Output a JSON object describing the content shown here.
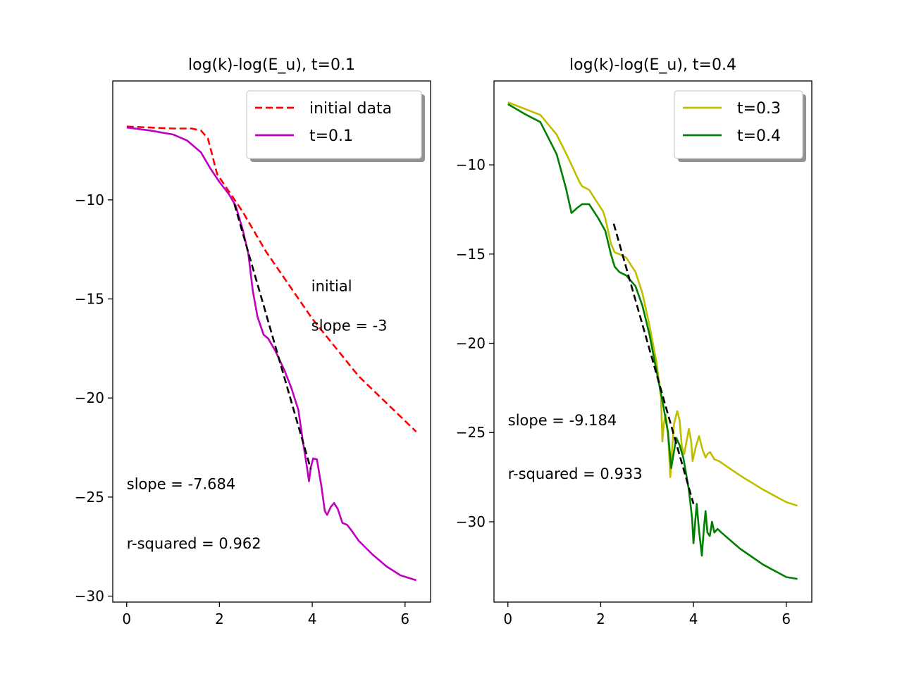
{
  "chart_data": [
    {
      "type": "line",
      "title": "log(k)-log(E_u), t=0.1",
      "xlim": [
        -0.3,
        6.55
      ],
      "ylim": [
        -30.3,
        -4.0
      ],
      "xticks": [
        0,
        2,
        4,
        6
      ],
      "xtick_labels": [
        "0",
        "2",
        "4",
        "6"
      ],
      "yticks": [
        -10,
        -15,
        -20,
        -25,
        -30
      ],
      "ytick_labels": [
        "−10",
        "−15",
        "−20",
        "−25",
        "−30"
      ],
      "legend_position": "top-right",
      "legend_entries": [
        "initial data",
        "t=0.1"
      ],
      "series": [
        {
          "name": "initial data",
          "color": "#ff0000",
          "dash": "dashed",
          "points": [
            [
              0,
              -6.3
            ],
            [
              0.5,
              -6.35
            ],
            [
              1.0,
              -6.4
            ],
            [
              1.4,
              -6.4
            ],
            [
              1.6,
              -6.5
            ],
            [
              1.75,
              -6.9
            ],
            [
              1.85,
              -7.8
            ],
            [
              1.95,
              -8.7
            ],
            [
              2.5,
              -10.6
            ],
            [
              3.0,
              -12.6
            ],
            [
              4.0,
              -16.0
            ],
            [
              5.0,
              -18.9
            ],
            [
              6.24,
              -21.7
            ]
          ]
        },
        {
          "name": "t=0.1",
          "color": "#bf00bf",
          "dash": "solid",
          "points": [
            [
              0,
              -6.35
            ],
            [
              0.5,
              -6.5
            ],
            [
              1.0,
              -6.7
            ],
            [
              1.3,
              -7.0
            ],
            [
              1.6,
              -7.6
            ],
            [
              1.8,
              -8.4
            ],
            [
              2.0,
              -9.1
            ],
            [
              2.2,
              -9.7
            ],
            [
              2.35,
              -10.3
            ],
            [
              2.5,
              -11.5
            ],
            [
              2.62,
              -12.7
            ],
            [
              2.72,
              -14.6
            ],
            [
              2.82,
              -15.9
            ],
            [
              2.95,
              -16.8
            ],
            [
              3.05,
              -17.0
            ],
            [
              3.2,
              -17.6
            ],
            [
              3.4,
              -18.6
            ],
            [
              3.55,
              -19.5
            ],
            [
              3.7,
              -20.6
            ],
            [
              3.8,
              -22.2
            ],
            [
              3.88,
              -23.4
            ],
            [
              3.93,
              -24.2
            ],
            [
              3.97,
              -23.5
            ],
            [
              4.02,
              -23.05
            ],
            [
              4.1,
              -23.1
            ],
            [
              4.2,
              -24.5
            ],
            [
              4.27,
              -25.7
            ],
            [
              4.32,
              -25.9
            ],
            [
              4.4,
              -25.5
            ],
            [
              4.47,
              -25.3
            ],
            [
              4.55,
              -25.6
            ],
            [
              4.65,
              -26.3
            ],
            [
              4.75,
              -26.4
            ],
            [
              4.85,
              -26.7
            ],
            [
              5.0,
              -27.2
            ],
            [
              5.3,
              -27.9
            ],
            [
              5.6,
              -28.5
            ],
            [
              5.9,
              -28.95
            ],
            [
              6.24,
              -29.2
            ]
          ]
        }
      ],
      "fit_line": {
        "color": "#000000",
        "dash": "dashed",
        "points": [
          [
            2.32,
            -10.2
          ],
          [
            3.97,
            -23.6
          ]
        ]
      },
      "annotations": [
        {
          "text": "initial",
          "x": 3.98,
          "y": -14.6
        },
        {
          "text": "slope = -3",
          "x": 3.98,
          "y": -16.6
        },
        {
          "text": "slope = -7.684",
          "x": 0.0,
          "y": -24.6
        },
        {
          "text": "r-squared = 0.962",
          "x": 0.0,
          "y": -27.6
        }
      ]
    },
    {
      "type": "line",
      "title": "log(k)-log(E_u), t=0.4",
      "xlim": [
        -0.3,
        6.55
      ],
      "ylim": [
        -34.5,
        -5.3
      ],
      "xticks": [
        0,
        2,
        4,
        6
      ],
      "xtick_labels": [
        "0",
        "2",
        "4",
        "6"
      ],
      "yticks": [
        -10,
        -15,
        -20,
        -25,
        -30
      ],
      "ytick_labels": [
        "−10",
        "−15",
        "−20",
        "−25",
        "−30"
      ],
      "legend_position": "top-right",
      "legend_entries": [
        "t=0.3",
        "t=0.4"
      ],
      "series": [
        {
          "name": "t=0.3",
          "color": "#bfbf00",
          "dash": "solid",
          "points": [
            [
              0,
              -6.5
            ],
            [
              0.4,
              -6.9
            ],
            [
              0.7,
              -7.2
            ],
            [
              1.05,
              -8.3
            ],
            [
              1.3,
              -9.6
            ],
            [
              1.55,
              -11.0
            ],
            [
              1.6,
              -11.2
            ],
            [
              1.75,
              -11.4
            ],
            [
              1.9,
              -12.0
            ],
            [
              2.05,
              -12.6
            ],
            [
              2.1,
              -13.0
            ],
            [
              2.22,
              -14.4
            ],
            [
              2.3,
              -14.9
            ],
            [
              2.4,
              -15.0
            ],
            [
              2.55,
              -15.2
            ],
            [
              2.75,
              -16.0
            ],
            [
              2.9,
              -17.2
            ],
            [
              3.05,
              -19.0
            ],
            [
              3.2,
              -21.0
            ],
            [
              3.3,
              -23.0
            ],
            [
              3.33,
              -25.5
            ],
            [
              3.36,
              -24.5
            ],
            [
              3.4,
              -24.0
            ],
            [
              3.45,
              -25.0
            ],
            [
              3.5,
              -27.5
            ],
            [
              3.53,
              -26.2
            ],
            [
              3.58,
              -24.5
            ],
            [
              3.65,
              -23.8
            ],
            [
              3.7,
              -24.3
            ],
            [
              3.75,
              -25.8
            ],
            [
              3.8,
              -26.2
            ],
            [
              3.85,
              -25.5
            ],
            [
              3.9,
              -24.8
            ],
            [
              3.95,
              -25.5
            ],
            [
              3.98,
              -26.6
            ],
            [
              4.05,
              -25.8
            ],
            [
              4.12,
              -25.2
            ],
            [
              4.2,
              -26.0
            ],
            [
              4.26,
              -26.4
            ],
            [
              4.3,
              -26.2
            ],
            [
              4.36,
              -26.1
            ],
            [
              4.45,
              -26.5
            ],
            [
              4.55,
              -26.6
            ],
            [
              5.0,
              -27.4
            ],
            [
              5.5,
              -28.2
            ],
            [
              6.0,
              -28.9
            ],
            [
              6.24,
              -29.1
            ]
          ]
        },
        {
          "name": "t=0.4",
          "color": "#008000",
          "dash": "solid",
          "points": [
            [
              0,
              -6.6
            ],
            [
              0.4,
              -7.2
            ],
            [
              0.7,
              -7.6
            ],
            [
              1.05,
              -9.4
            ],
            [
              1.25,
              -11.3
            ],
            [
              1.37,
              -12.7
            ],
            [
              1.5,
              -12.4
            ],
            [
              1.6,
              -12.2
            ],
            [
              1.75,
              -12.2
            ],
            [
              1.95,
              -13.0
            ],
            [
              2.1,
              -13.7
            ],
            [
              2.22,
              -15.0
            ],
            [
              2.3,
              -15.7
            ],
            [
              2.4,
              -16.0
            ],
            [
              2.55,
              -16.2
            ],
            [
              2.75,
              -16.8
            ],
            [
              2.9,
              -17.9
            ],
            [
              3.05,
              -19.5
            ],
            [
              3.2,
              -21.5
            ],
            [
              3.35,
              -23.5
            ],
            [
              3.45,
              -25.0
            ],
            [
              3.52,
              -27.0
            ],
            [
              3.57,
              -26.2
            ],
            [
              3.63,
              -25.3
            ],
            [
              3.7,
              -25.7
            ],
            [
              3.78,
              -26.4
            ],
            [
              3.82,
              -27.0
            ],
            [
              3.9,
              -28.2
            ],
            [
              3.97,
              -29.8
            ],
            [
              4.0,
              -31.2
            ],
            [
              4.03,
              -30.2
            ],
            [
              4.07,
              -29.0
            ],
            [
              4.12,
              -30.5
            ],
            [
              4.18,
              -31.9
            ],
            [
              4.22,
              -30.5
            ],
            [
              4.26,
              -29.4
            ],
            [
              4.3,
              -30.6
            ],
            [
              4.35,
              -30.8
            ],
            [
              4.4,
              -30.0
            ],
            [
              4.45,
              -30.6
            ],
            [
              4.52,
              -30.4
            ],
            [
              4.6,
              -30.6
            ],
            [
              5.0,
              -31.5
            ],
            [
              5.5,
              -32.4
            ],
            [
              6.0,
              -33.1
            ],
            [
              6.24,
              -33.2
            ]
          ]
        }
      ],
      "fit_line": {
        "color": "#000000",
        "dash": "dashed",
        "points": [
          [
            2.28,
            -13.3
          ],
          [
            4.0,
            -29.0
          ]
        ]
      },
      "annotations": [
        {
          "text": "slope = -9.184",
          "x": 0.0,
          "y": -24.6
        },
        {
          "text": "r-squared = 0.933",
          "x": 0.0,
          "y": -27.6
        }
      ]
    }
  ]
}
